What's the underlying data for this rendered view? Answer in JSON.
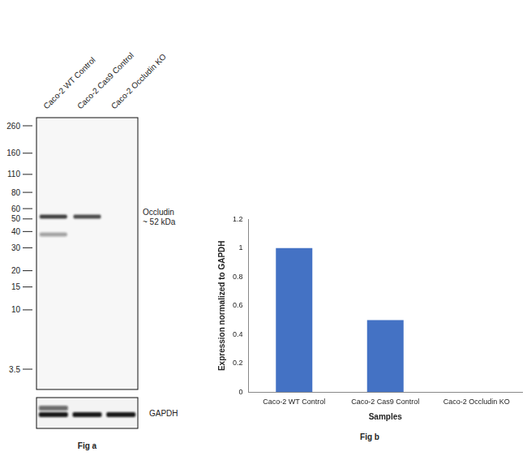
{
  "figure_a": {
    "caption": "Fig a",
    "lanes": [
      "Caco-2 WT Control",
      "Caco-2 Cas9 Control",
      "Caco-2 Occludin KO"
    ],
    "marker_kda": [
      260,
      160,
      110,
      80,
      60,
      50,
      40,
      30,
      20,
      15,
      10,
      3.5
    ],
    "target": {
      "name": "Occludin",
      "label": "~ 52 kDa",
      "kda": 52
    },
    "bands": [
      {
        "lane": "Caco-2 WT Control",
        "kda": 52,
        "intensity": 0.85
      },
      {
        "lane": "Caco-2 WT Control",
        "kda": 38,
        "intensity": 0.4
      },
      {
        "lane": "Caco-2 Cas9 Control",
        "kda": 52,
        "intensity": 0.8
      }
    ],
    "loading_control": {
      "name": "GAPDH",
      "bands_per_lane": [
        2,
        1,
        1
      ]
    }
  },
  "chart_data": {
    "type": "bar",
    "categories": [
      "Caco-2 WT Control",
      "Caco-2 Cas9 Control",
      "Caco-2 Occludin KO"
    ],
    "values": [
      1,
      0.5,
      0
    ],
    "color": "#4472c4",
    "x_label": "Samples",
    "y_label": "Expression normalized to GAPDH",
    "ylim": [
      0,
      1.2
    ],
    "yticks": [
      0,
      0.2,
      0.4,
      0.6,
      0.8,
      1,
      1.2
    ],
    "grid": false
  },
  "caption_b": "Fig b"
}
